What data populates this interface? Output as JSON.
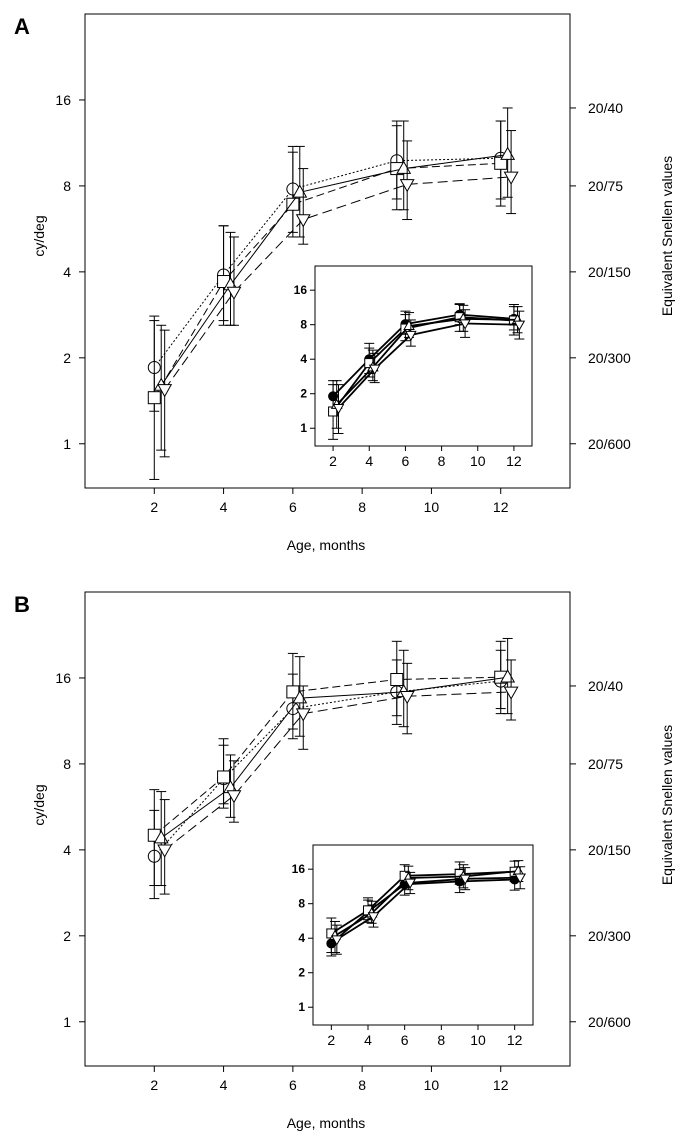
{
  "chart_data": [
    {
      "type": "line",
      "panel": "A",
      "xlabel": "Age, months",
      "ylabel": "cy/deg",
      "y2label": "Equivalent Snellen values",
      "xticks": [
        2,
        4,
        6,
        8,
        10,
        12
      ],
      "yticks": [
        1,
        2,
        4,
        8,
        16
      ],
      "yscale": "log2",
      "xlim": [
        0,
        14
      ],
      "ylim": [
        0.7,
        32
      ],
      "snellen_ticks": [
        {
          "value": 15,
          "label": "20/40"
        },
        {
          "value": 8,
          "label": "20/75"
        },
        {
          "value": 4,
          "label": "20/150"
        },
        {
          "value": 2,
          "label": "20/300"
        },
        {
          "value": 1,
          "label": "20/600"
        }
      ],
      "series": [
        {
          "name": "circle",
          "marker": "circle",
          "dash": "2,2",
          "x": [
            2,
            4,
            6,
            9,
            12
          ],
          "y": [
            1.85,
            3.9,
            7.8,
            9.8,
            10.0
          ],
          "ylo": [
            1.3,
            2.7,
            5.5,
            7.2,
            7.2
          ],
          "yhi": [
            2.8,
            5.8,
            11.0,
            13.5,
            13.5
          ]
        },
        {
          "name": "square",
          "marker": "square",
          "dash": "8,4",
          "x": [
            2,
            4,
            6,
            9,
            12
          ],
          "y": [
            1.45,
            3.7,
            6.9,
            9.2,
            9.6
          ],
          "ylo": [
            0.75,
            2.6,
            5.3,
            6.6,
            6.8
          ],
          "yhi": [
            2.7,
            5.8,
            10.5,
            13.0,
            13.5
          ]
        },
        {
          "name": "up-triangle",
          "marker": "triangle-up",
          "dash": "",
          "x": [
            2.2,
            4.2,
            6.2,
            9.2,
            12.2
          ],
          "y": [
            1.6,
            3.6,
            7.6,
            9.2,
            10.3
          ],
          "ylo": [
            0.95,
            2.6,
            5.3,
            6.6,
            7.3
          ],
          "yhi": [
            2.6,
            5.5,
            11.0,
            13.5,
            15.0
          ]
        },
        {
          "name": "down-triangle",
          "marker": "triangle-down",
          "dash": "10,5",
          "x": [
            2.3,
            4.3,
            6.3,
            9.3,
            12.3
          ],
          "y": [
            1.55,
            3.4,
            6.1,
            8.1,
            8.6
          ],
          "ylo": [
            0.9,
            2.6,
            5.0,
            6.1,
            6.4
          ],
          "yhi": [
            2.5,
            5.3,
            9.2,
            11.5,
            12.5
          ]
        }
      ],
      "inset": {
        "xticks": [
          2,
          4,
          6,
          8,
          10,
          12
        ],
        "yticks": [
          1,
          2,
          4,
          8,
          16
        ],
        "xlim": [
          1,
          13
        ],
        "ylim": [
          0.7,
          26
        ],
        "series": [
          {
            "name": "filled-circle",
            "marker": "circle-filled",
            "x": [
              2,
              4,
              6,
              9,
              12
            ],
            "y": [
              1.9,
              4.0,
              8.1,
              9.8,
              9.0
            ],
            "ylo": [
              1.4,
              3.0,
              6.6,
              8.0,
              7.2
            ],
            "yhi": [
              2.6,
              5.5,
              10.5,
              12.2,
              12.0
            ]
          },
          {
            "name": "square",
            "marker": "square",
            "x": [
              2,
              4,
              6,
              9,
              12
            ],
            "y": [
              1.4,
              3.7,
              7.4,
              9.3,
              8.7
            ],
            "ylo": [
              0.8,
              2.8,
              5.8,
              7.0,
              6.5
            ],
            "yhi": [
              2.4,
              5.0,
              9.8,
              12.0,
              11.5
            ]
          },
          {
            "name": "up-triangle",
            "marker": "triangle-up",
            "x": [
              2.2,
              4.2,
              6.2,
              9.2,
              12.2
            ],
            "y": [
              1.6,
              3.4,
              7.8,
              9.0,
              8.8
            ],
            "ylo": [
              1.0,
              2.6,
              6.2,
              7.0,
              6.8
            ],
            "yhi": [
              2.6,
              4.8,
              10.2,
              11.8,
              11.5
            ]
          },
          {
            "name": "down-triangle",
            "marker": "triangle-down",
            "x": [
              2.3,
              4.3,
              6.3,
              9.3,
              12.3
            ],
            "y": [
              1.5,
              3.3,
              6.5,
              8.2,
              8.0
            ],
            "ylo": [
              0.9,
              2.5,
              5.2,
              6.2,
              6.0
            ],
            "yhi": [
              2.4,
              4.5,
              8.8,
              10.8,
              10.5
            ]
          }
        ]
      }
    },
    {
      "type": "line",
      "panel": "B",
      "xlabel": "Age, months",
      "ylabel": "cy/deg",
      "y2label": "Equivalent Snellen values",
      "xticks": [
        2,
        4,
        6,
        8,
        10,
        12
      ],
      "yticks": [
        1,
        2,
        4,
        8,
        16
      ],
      "yscale": "log2",
      "xlim": [
        0,
        14
      ],
      "ylim": [
        0.7,
        32
      ],
      "snellen_ticks": [
        {
          "value": 15,
          "label": "20/40"
        },
        {
          "value": 8,
          "label": "20/75"
        },
        {
          "value": 4,
          "label": "20/150"
        },
        {
          "value": 2,
          "label": "20/300"
        },
        {
          "value": 1,
          "label": "20/600"
        }
      ],
      "series": [
        {
          "name": "circle",
          "marker": "circle",
          "dash": "2,2",
          "x": [
            2,
            4,
            6,
            9,
            12
          ],
          "y": [
            3.8,
            7.1,
            12.5,
            14.3,
            15.6
          ],
          "ylo": [
            2.7,
            5.6,
            9.8,
            11.0,
            12.0
          ],
          "yhi": [
            5.5,
            9.3,
            16.5,
            18.5,
            20.0
          ]
        },
        {
          "name": "square",
          "marker": "square",
          "dash": "8,4",
          "x": [
            2,
            4,
            6,
            9,
            12
          ],
          "y": [
            4.5,
            7.2,
            14.3,
            15.8,
            16.1
          ],
          "ylo": [
            3.0,
            5.8,
            10.6,
            11.8,
            12.5
          ],
          "yhi": [
            6.5,
            9.8,
            19.5,
            21.5,
            21.5
          ]
        },
        {
          "name": "up-triangle",
          "marker": "triangle-up",
          "dash": "",
          "x": [
            2.2,
            4.2,
            6.2,
            9.2,
            12.2
          ],
          "y": [
            4.4,
            6.6,
            13.6,
            14.3,
            16.1
          ],
          "ylo": [
            3.0,
            5.2,
            10.0,
            10.8,
            12.0
          ],
          "yhi": [
            6.4,
            8.6,
            19.0,
            20.0,
            22.0
          ]
        },
        {
          "name": "down-triangle",
          "marker": "triangle-down",
          "dash": "10,5",
          "x": [
            2.3,
            4.3,
            6.3,
            9.3,
            12.3
          ],
          "y": [
            4.0,
            6.2,
            12.0,
            13.8,
            14.3
          ],
          "ylo": [
            2.8,
            5.0,
            9.0,
            10.2,
            11.4
          ],
          "yhi": [
            6.0,
            8.2,
            15.0,
            18.0,
            18.5
          ]
        }
      ],
      "inset": {
        "xticks": [
          2,
          4,
          6,
          8,
          10,
          12
        ],
        "yticks": [
          1,
          2,
          4,
          8,
          16
        ],
        "xlim": [
          1,
          13
        ],
        "ylim": [
          0.7,
          26
        ],
        "series": [
          {
            "name": "filled-circle",
            "marker": "circle-filled",
            "x": [
              2,
              4,
              6,
              9,
              12
            ],
            "y": [
              3.6,
              6.8,
              11.8,
              12.5,
              13.0
            ],
            "ylo": [
              2.8,
              5.5,
              9.5,
              10.0,
              10.5
            ],
            "yhi": [
              4.8,
              8.6,
              14.5,
              16.0,
              16.5
            ]
          },
          {
            "name": "square",
            "marker": "square",
            "x": [
              2,
              4,
              6,
              9,
              12
            ],
            "y": [
              4.4,
              7.0,
              14.0,
              14.5,
              15.2
            ],
            "ylo": [
              3.0,
              5.8,
              11.0,
              11.8,
              12.5
            ],
            "yhi": [
              6.0,
              9.0,
              17.5,
              18.5,
              18.8
            ]
          },
          {
            "name": "up-triangle",
            "marker": "triangle-up",
            "x": [
              2.2,
              4.2,
              6.2,
              9.2,
              12.2
            ],
            "y": [
              4.2,
              6.6,
              13.4,
              13.8,
              15.4
            ],
            "ylo": [
              3.0,
              5.4,
              10.6,
              11.0,
              12.5
            ],
            "yhi": [
              5.6,
              8.4,
              17.0,
              17.5,
              19.0
            ]
          },
          {
            "name": "down-triangle",
            "marker": "triangle-down",
            "x": [
              2.3,
              4.3,
              6.3,
              9.3,
              12.3
            ],
            "y": [
              3.9,
              6.2,
              12.2,
              13.2,
              13.5
            ],
            "ylo": [
              2.9,
              5.0,
              9.8,
              10.6,
              10.8
            ],
            "yhi": [
              5.2,
              7.8,
              15.0,
              16.5,
              16.8
            ]
          }
        ]
      }
    }
  ]
}
